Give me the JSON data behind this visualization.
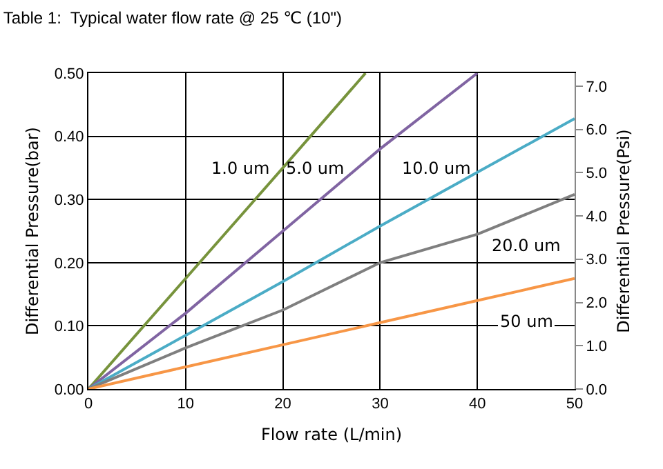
{
  "chart_data": {
    "type": "line",
    "title": "Table 1:  Typical water flow rate @ 25 ℃ (10\")",
    "xlabel": "Flow rate (L/min)",
    "ylabel": "Differential Pressure(bar)",
    "y2label": "Differential Pressure(Psi)",
    "series": [
      {
        "name": "1.0 um",
        "color": "#77933c",
        "x": [
          0,
          10,
          20,
          28.5
        ],
        "values": [
          0,
          0.175,
          0.35,
          0.5
        ]
      },
      {
        "name": "5.0 um",
        "color": "#8064a2",
        "x": [
          0,
          10,
          20,
          30,
          40
        ],
        "values": [
          0,
          0.12,
          0.25,
          0.38,
          0.5
        ]
      },
      {
        "name": "10.0 um",
        "color": "#4bacc6",
        "x": [
          0,
          10,
          20,
          30,
          40,
          50
        ],
        "values": [
          0,
          0.085,
          0.17,
          0.258,
          0.343,
          0.428
        ]
      },
      {
        "name": "20.0 um",
        "color": "#7f7f7f",
        "x": [
          0,
          10,
          20,
          30,
          40,
          50
        ],
        "values": [
          0,
          0.065,
          0.125,
          0.2,
          0.245,
          0.308
        ]
      },
      {
        "name": "50 um",
        "color": "#f79646",
        "x": [
          0,
          10,
          20,
          30,
          40,
          50
        ],
        "values": [
          0,
          0.035,
          0.07,
          0.105,
          0.14,
          0.175
        ]
      }
    ],
    "xlim": [
      0,
      50
    ],
    "xticks": [
      0,
      10,
      20,
      30,
      40,
      50
    ],
    "ylim": [
      0,
      0.5
    ],
    "yticks": [
      {
        "value": 0,
        "label": "0.00"
      },
      {
        "value": 0.1,
        "label": "0.10"
      },
      {
        "value": 0.2,
        "label": "0.20"
      },
      {
        "value": 0.3,
        "label": "0.30"
      },
      {
        "value": 0.4,
        "label": "0.40"
      },
      {
        "value": 0.5,
        "label": "0.50"
      }
    ],
    "y2lim": [
      0,
      7.3
    ],
    "y2ticks": [
      {
        "value": 0,
        "label": "0.0"
      },
      {
        "value": 1,
        "label": "1.0"
      },
      {
        "value": 2,
        "label": "2.0"
      },
      {
        "value": 3,
        "label": "3.0"
      },
      {
        "value": 4,
        "label": "4.0"
      },
      {
        "value": 5,
        "label": "5.0"
      },
      {
        "value": 6,
        "label": "6.0"
      },
      {
        "value": 7,
        "label": "7.0"
      }
    ],
    "grid": true,
    "legend": false,
    "marker": "none",
    "line_style": "solid"
  }
}
